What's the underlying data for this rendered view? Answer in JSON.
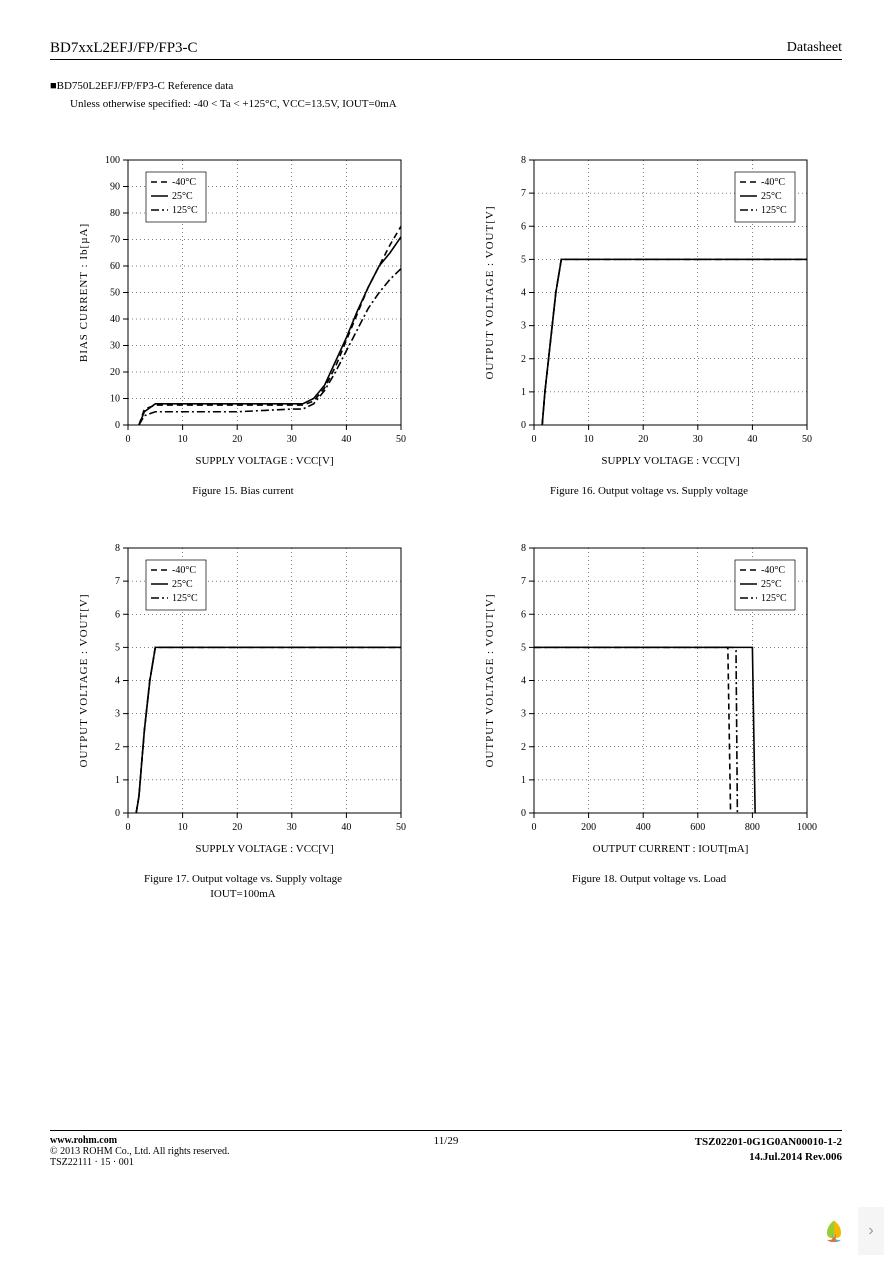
{
  "header": {
    "part": "BD7xxL2EFJ/FP/FP3-C",
    "doc_label": "Datasheet"
  },
  "ref_heading": "■BD750L2EFJ/FP/FP3-C Reference data",
  "conditions": "Unless otherwise specified: -40 < Ta < +125°C, VCC=13.5V, IOUT=0mA",
  "legend": {
    "items": [
      "-40°C",
      "25°C",
      "125°C"
    ],
    "linestyles": [
      "dash",
      "solid",
      "dashdot"
    ],
    "font_size": 10,
    "box_stroke": "#000000",
    "box_fill": "#ffffff"
  },
  "axis_style": {
    "grid_color": "#000000",
    "grid_dash": "1,3",
    "tick_font_size": 10,
    "axis_font_size": 11,
    "line_color": "#000000",
    "line_width": 1.6,
    "plot_border": "#000000",
    "background": "#ffffff"
  },
  "charts": [
    {
      "id": "fig15",
      "caption": "Figure 15. Bias current",
      "xlabel": "SUPPLY VOLTAGE : VCC[V]",
      "ylabel": "BIAS CURRENT : Ib[µA]",
      "xlim": [
        0,
        50
      ],
      "xtick_step": 10,
      "ylim": [
        0,
        100
      ],
      "ytick_step": 10,
      "legend_pos": "top-left",
      "series": [
        {
          "style": "dash",
          "points": [
            [
              2,
              0
            ],
            [
              3,
              6
            ],
            [
              5,
              7.5
            ],
            [
              10,
              7.5
            ],
            [
              15,
              7.5
            ],
            [
              20,
              7.5
            ],
            [
              25,
              7.5
            ],
            [
              30,
              7.5
            ],
            [
              32,
              7.5
            ],
            [
              34,
              9
            ],
            [
              36,
              14
            ],
            [
              38,
              22
            ],
            [
              40,
              32
            ],
            [
              42,
              42
            ],
            [
              44,
              52
            ],
            [
              46,
              60
            ],
            [
              48,
              68
            ],
            [
              50,
              75
            ]
          ]
        },
        {
          "style": "solid",
          "points": [
            [
              2,
              0
            ],
            [
              3,
              5
            ],
            [
              5,
              8
            ],
            [
              10,
              8
            ],
            [
              15,
              8
            ],
            [
              20,
              8
            ],
            [
              25,
              8
            ],
            [
              30,
              8
            ],
            [
              32,
              8
            ],
            [
              34,
              10
            ],
            [
              36,
              15
            ],
            [
              38,
              24
            ],
            [
              40,
              33
            ],
            [
              42,
              43
            ],
            [
              44,
              52
            ],
            [
              46,
              60
            ],
            [
              48,
              65
            ],
            [
              50,
              71
            ]
          ]
        },
        {
          "style": "dashdot",
          "points": [
            [
              2,
              0
            ],
            [
              3,
              3.5
            ],
            [
              5,
              5
            ],
            [
              10,
              5
            ],
            [
              15,
              5
            ],
            [
              20,
              5
            ],
            [
              25,
              5.5
            ],
            [
              30,
              6
            ],
            [
              32,
              6
            ],
            [
              34,
              8
            ],
            [
              36,
              13
            ],
            [
              38,
              20
            ],
            [
              40,
              28
            ],
            [
              42,
              36
            ],
            [
              44,
              44
            ],
            [
              46,
              50
            ],
            [
              48,
              55
            ],
            [
              50,
              59
            ]
          ]
        }
      ]
    },
    {
      "id": "fig16",
      "caption": "Figure 16. Output voltage vs. Supply voltage",
      "xlabel": "SUPPLY VOLTAGE : VCC[V]",
      "ylabel": "OUTPUT VOLTAGE : VOUT[V]",
      "xlim": [
        0,
        50
      ],
      "xtick_step": 10,
      "ylim": [
        0,
        8
      ],
      "ytick_step": 1,
      "legend_pos": "top-right",
      "series": [
        {
          "style": "dash",
          "points": [
            [
              1.5,
              0
            ],
            [
              2,
              1
            ],
            [
              3,
              2.5
            ],
            [
              4,
              4
            ],
            [
              5,
              5
            ],
            [
              6,
              5
            ],
            [
              10,
              5
            ],
            [
              50,
              5
            ]
          ]
        },
        {
          "style": "solid",
          "points": [
            [
              1.5,
              0
            ],
            [
              2,
              1
            ],
            [
              3,
              2.5
            ],
            [
              4,
              4
            ],
            [
              5,
              5
            ],
            [
              6,
              5
            ],
            [
              10,
              5
            ],
            [
              50,
              5
            ]
          ]
        },
        {
          "style": "dashdot",
          "points": [
            [
              1.5,
              0
            ],
            [
              2,
              1
            ],
            [
              3,
              2.5
            ],
            [
              4,
              4
            ],
            [
              5,
              5
            ],
            [
              6,
              5
            ],
            [
              10,
              5
            ],
            [
              50,
              5
            ]
          ]
        }
      ]
    },
    {
      "id": "fig17",
      "caption": "Figure 17. Output voltage vs. Supply voltage\nIOUT=100mA",
      "xlabel": "SUPPLY VOLTAGE : VCC[V]",
      "ylabel": "OUTPUT VOLTAGE : VOUT[V]",
      "xlim": [
        0,
        50
      ],
      "xtick_step": 10,
      "ylim": [
        0,
        8
      ],
      "ytick_step": 1,
      "legend_pos": "top-left",
      "series": [
        {
          "style": "dash",
          "points": [
            [
              1.5,
              0
            ],
            [
              2,
              0.5
            ],
            [
              3,
              2.5
            ],
            [
              4,
              4
            ],
            [
              5,
              5
            ],
            [
              6,
              5
            ],
            [
              10,
              5
            ],
            [
              50,
              5
            ]
          ]
        },
        {
          "style": "solid",
          "points": [
            [
              1.5,
              0
            ],
            [
              2,
              0.5
            ],
            [
              3,
              2.5
            ],
            [
              4,
              4
            ],
            [
              5,
              5
            ],
            [
              6,
              5
            ],
            [
              10,
              5
            ],
            [
              50,
              5
            ]
          ]
        },
        {
          "style": "dashdot",
          "points": [
            [
              1.5,
              0
            ],
            [
              2,
              0.5
            ],
            [
              3,
              2.5
            ],
            [
              4,
              4
            ],
            [
              5,
              5
            ],
            [
              6,
              5
            ],
            [
              10,
              5
            ],
            [
              50,
              5
            ]
          ]
        }
      ]
    },
    {
      "id": "fig18",
      "caption": "Figure 18. Output voltage vs. Load",
      "xlabel": "OUTPUT CURRENT : IOUT[mA]",
      "ylabel": "OUTPUT VOLTAGE : VOUT[V]",
      "xlim": [
        0,
        1000
      ],
      "xtick_step": 200,
      "ylim": [
        0,
        8
      ],
      "ytick_step": 1,
      "legend_pos": "top-right",
      "series": [
        {
          "style": "dash",
          "points": [
            [
              0,
              5
            ],
            [
              700,
              5
            ],
            [
              710,
              5
            ],
            [
              720,
              0
            ]
          ]
        },
        {
          "style": "solid",
          "points": [
            [
              0,
              5
            ],
            [
              790,
              5
            ],
            [
              800,
              5
            ],
            [
              810,
              0
            ]
          ]
        },
        {
          "style": "dashdot",
          "points": [
            [
              0,
              5
            ],
            [
              730,
              5
            ],
            [
              740,
              4.9
            ],
            [
              745,
              0
            ]
          ]
        }
      ]
    }
  ],
  "footer": {
    "url": "www.rohm.com",
    "copyright": "© 2013 ROHM Co., Ltd. All rights reserved.",
    "tsz1": "TSZ22111 · 15 · 001",
    "page": "11/29",
    "doc_no": "TSZ02201-0G1G0AN00010-1-2",
    "date_rev": "14.Jul.2014 Rev.006"
  }
}
